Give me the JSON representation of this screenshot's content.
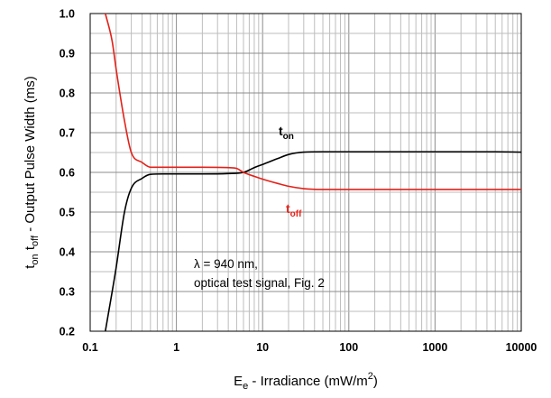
{
  "chart_data": {
    "type": "line",
    "xscale": "log",
    "xlim": [
      0.1,
      10000
    ],
    "ylim": [
      0.2,
      1.0
    ],
    "grid": true,
    "x_tick_labels": [
      "0.1",
      "1",
      "10",
      "100",
      "1000",
      "10000"
    ],
    "y_tick_labels": [
      "0.2",
      "0.3",
      "0.4",
      "0.5",
      "0.6",
      "0.7",
      "0.8",
      "0.9",
      "1.0"
    ],
    "xlabel": {
      "main": "E",
      "sub": "e",
      "rest": " - Irradiance (mW/m",
      "sup": "2",
      "close": ")"
    },
    "ylabel": {
      "p1": "t",
      "s1": "on",
      "p2": " t",
      "s2": "off",
      "p3": " - Output Pulse Width (ms)"
    },
    "annotations": [
      "λ = 940 nm,",
      "optical test signal, Fig. 2"
    ],
    "series": [
      {
        "label_main": "t",
        "label_sub": "on",
        "color": "#000000",
        "points": [
          [
            0.15,
            0.2
          ],
          [
            0.2,
            0.36
          ],
          [
            0.25,
            0.5
          ],
          [
            0.3,
            0.56
          ],
          [
            0.4,
            0.585
          ],
          [
            0.5,
            0.595
          ],
          [
            0.7,
            0.596
          ],
          [
            1,
            0.596
          ],
          [
            2,
            0.596
          ],
          [
            4,
            0.597
          ],
          [
            6,
            0.6
          ],
          [
            8,
            0.612
          ],
          [
            10,
            0.62
          ],
          [
            15,
            0.635
          ],
          [
            20,
            0.645
          ],
          [
            30,
            0.651
          ],
          [
            50,
            0.652
          ],
          [
            100,
            0.652
          ],
          [
            1000,
            0.652
          ],
          [
            5000,
            0.652
          ],
          [
            10000,
            0.651
          ]
        ]
      },
      {
        "label_main": "t",
        "label_sub": "off",
        "color": "#e32119",
        "points": [
          [
            0.15,
            1.0
          ],
          [
            0.18,
            0.93
          ],
          [
            0.2,
            0.86
          ],
          [
            0.25,
            0.73
          ],
          [
            0.3,
            0.65
          ],
          [
            0.4,
            0.625
          ],
          [
            0.5,
            0.613
          ],
          [
            0.7,
            0.613
          ],
          [
            1,
            0.613
          ],
          [
            2,
            0.613
          ],
          [
            4,
            0.612
          ],
          [
            5,
            0.61
          ],
          [
            6,
            0.6
          ],
          [
            8,
            0.59
          ],
          [
            10,
            0.583
          ],
          [
            15,
            0.572
          ],
          [
            20,
            0.565
          ],
          [
            30,
            0.559
          ],
          [
            50,
            0.557
          ],
          [
            100,
            0.557
          ],
          [
            1000,
            0.557
          ],
          [
            10000,
            0.557
          ]
        ]
      }
    ]
  }
}
